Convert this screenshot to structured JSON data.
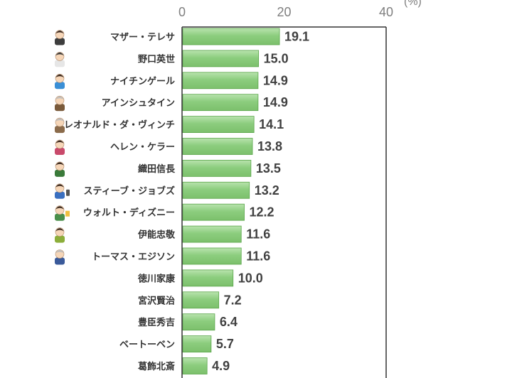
{
  "chart_data": {
    "type": "bar",
    "orientation": "horizontal",
    "unit": "(%)",
    "xlim": [
      0,
      40
    ],
    "xticks": [
      "0",
      "20",
      "40"
    ],
    "grid": false,
    "categories": [
      "マザー・テレサ",
      "野口英世",
      "ナイチンゲール",
      "アインシュタイン",
      "レオナルド・ダ・ヴィンチ",
      "ヘレン・ケラー",
      "織田信長",
      "スティーブ・ジョブズ",
      "ウォルト・ディズニー",
      "伊能忠敬",
      "トーマス・エジソン",
      "徳川家康",
      "宮沢賢治",
      "豊臣秀吉",
      "ベートーベン",
      "葛飾北斎"
    ],
    "values": [
      19.1,
      15.0,
      14.9,
      14.9,
      14.1,
      13.8,
      13.5,
      13.2,
      12.2,
      11.6,
      11.6,
      10.0,
      7.2,
      6.4,
      5.7,
      4.9
    ],
    "value_labels": [
      "19.1",
      "15.0",
      "14.9",
      "14.9",
      "14.1",
      "13.8",
      "13.5",
      "13.2",
      "12.2",
      "11.6",
      "11.6",
      "10.0",
      "7.2",
      "6.4",
      "5.7",
      "4.9"
    ],
    "icons": [
      "nun-icon",
      "doctor-icon",
      "nurse-icon",
      "scientist-icon",
      "painter-icon",
      "woman-icon",
      "samurai-icon",
      "businessman-icon",
      "castle-icon",
      "surveyor-icon",
      "inventor-icon",
      "",
      "",
      "",
      "",
      ""
    ],
    "colors": {
      "bar": "#8ccd7e",
      "bar_edge": "#5aa64a",
      "axis": "#333333"
    }
  }
}
